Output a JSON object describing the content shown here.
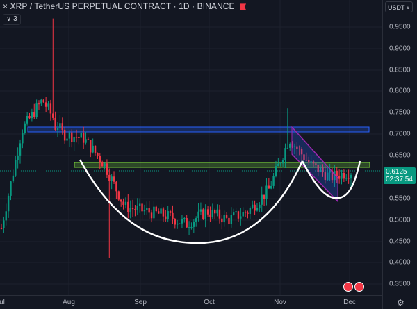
{
  "header": {
    "close_glyph": "×",
    "title": "XRP / TetherUS PERPETUAL CONTRACT · 1D · BINANCE",
    "collapse_glyph": "∨",
    "indicator_count": "3"
  },
  "currency_selector": {
    "label": "USDT",
    "chevron": "∨"
  },
  "price_axis": {
    "ticks": [
      "0.9500",
      "0.9000",
      "0.8500",
      "0.8000",
      "0.7500",
      "0.7000",
      "0.6500",
      "0.5500",
      "0.5000",
      "0.4500",
      "0.4000",
      "0.3500"
    ]
  },
  "time_axis": {
    "ticks": [
      "ul",
      "Aug",
      "Sep",
      "Oct",
      "Nov",
      "Dec"
    ]
  },
  "last_price": {
    "value": "0.6125",
    "countdown": "02:37:54",
    "color": "#089981"
  },
  "colors": {
    "up": "#089981",
    "down": "#f23645",
    "blue_zone": "#2962ff",
    "green_zone": "#7cd63a",
    "channel": "#9c27b0",
    "arc": "#ffffff"
  },
  "icons": [
    "flag-icon",
    "settings-gear-icon",
    "event-icon",
    "event-icon"
  ],
  "chart_data": {
    "type": "candlestick",
    "symbol": "XRP / TetherUS PERPETUAL CONTRACT",
    "interval": "1D",
    "exchange": "BINANCE",
    "ylim": [
      0.33,
      0.97
    ],
    "approx_close_path": [
      {
        "x": "Jul",
        "y": 0.48
      },
      {
        "x": "Jul 13",
        "y": 0.71
      },
      {
        "x": "Jul 20",
        "y": 0.78
      },
      {
        "x": "Jul 27",
        "y": 0.7
      },
      {
        "x": "Aug 3",
        "y": 0.69
      },
      {
        "x": "Aug 10",
        "y": 0.63
      },
      {
        "x": "Aug 17",
        "y": 0.53
      },
      {
        "x": "Aug 24",
        "y": 0.52
      },
      {
        "x": "Sep 1",
        "y": 0.51
      },
      {
        "x": "Sep 15",
        "y": 0.49
      },
      {
        "x": "Oct 1",
        "y": 0.52
      },
      {
        "x": "Oct 15",
        "y": 0.5
      },
      {
        "x": "Oct 25",
        "y": 0.52
      },
      {
        "x": "Nov 1",
        "y": 0.57
      },
      {
        "x": "Nov 9",
        "y": 0.69
      },
      {
        "x": "Nov 16",
        "y": 0.63
      },
      {
        "x": "Nov 23",
        "y": 0.6
      },
      {
        "x": "Dec",
        "y": 0.6125
      }
    ]
  }
}
